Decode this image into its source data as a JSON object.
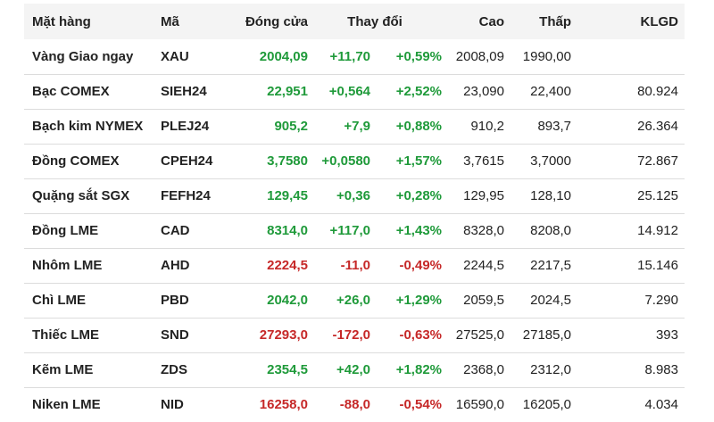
{
  "headers": {
    "name": "Mặt hàng",
    "code": "Mã",
    "close": "Đóng cửa",
    "change": "Thay đổi",
    "high": "Cao",
    "low": "Thấp",
    "volume": "KLGD"
  },
  "colors": {
    "up": "#1f9a3a",
    "down": "#c62828",
    "header_bg": "#f4f4f4"
  },
  "rows": [
    {
      "name": "Vàng Giao ngay",
      "code": "XAU",
      "close": "2004,09",
      "change": "+11,70",
      "pct": "+0,59%",
      "high": "2008,09",
      "low": "1990,00",
      "volume": "",
      "dir": "up"
    },
    {
      "name": "Bạc COMEX",
      "code": "SIEH24",
      "close": "22,951",
      "change": "+0,564",
      "pct": "+2,52%",
      "high": "23,090",
      "low": "22,400",
      "volume": "80.924",
      "dir": "up"
    },
    {
      "name": "Bạch kim NYMEX",
      "code": "PLEJ24",
      "close": "905,2",
      "change": "+7,9",
      "pct": "+0,88%",
      "high": "910,2",
      "low": "893,7",
      "volume": "26.364",
      "dir": "up"
    },
    {
      "name": "Đồng COMEX",
      "code": "CPEH24",
      "close": "3,7580",
      "change": "+0,0580",
      "pct": "+1,57%",
      "high": "3,7615",
      "low": "3,7000",
      "volume": "72.867",
      "dir": "up"
    },
    {
      "name": "Quặng sắt SGX",
      "code": "FEFH24",
      "close": "129,45",
      "change": "+0,36",
      "pct": "+0,28%",
      "high": "129,95",
      "low": "128,10",
      "volume": "25.125",
      "dir": "up"
    },
    {
      "name": "Đồng LME",
      "code": "CAD",
      "close": "8314,0",
      "change": "+117,0",
      "pct": "+1,43%",
      "high": "8328,0",
      "low": "8208,0",
      "volume": "14.912",
      "dir": "up"
    },
    {
      "name": "Nhôm LME",
      "code": "AHD",
      "close": "2224,5",
      "change": "-11,0",
      "pct": "-0,49%",
      "high": "2244,5",
      "low": "2217,5",
      "volume": "15.146",
      "dir": "down"
    },
    {
      "name": "Chì LME",
      "code": "PBD",
      "close": "2042,0",
      "change": "+26,0",
      "pct": "+1,29%",
      "high": "2059,5",
      "low": "2024,5",
      "volume": "7.290",
      "dir": "up"
    },
    {
      "name": "Thiếc LME",
      "code": "SND",
      "close": "27293,0",
      "change": "-172,0",
      "pct": "-0,63%",
      "high": "27525,0",
      "low": "27185,0",
      "volume": "393",
      "dir": "down"
    },
    {
      "name": "Kẽm LME",
      "code": "ZDS",
      "close": "2354,5",
      "change": "+42,0",
      "pct": "+1,82%",
      "high": "2368,0",
      "low": "2312,0",
      "volume": "8.983",
      "dir": "up"
    },
    {
      "name": "Niken LME",
      "code": "NID",
      "close": "16258,0",
      "change": "-88,0",
      "pct": "-0,54%",
      "high": "16590,0",
      "low": "16205,0",
      "volume": "4.034",
      "dir": "down"
    }
  ]
}
